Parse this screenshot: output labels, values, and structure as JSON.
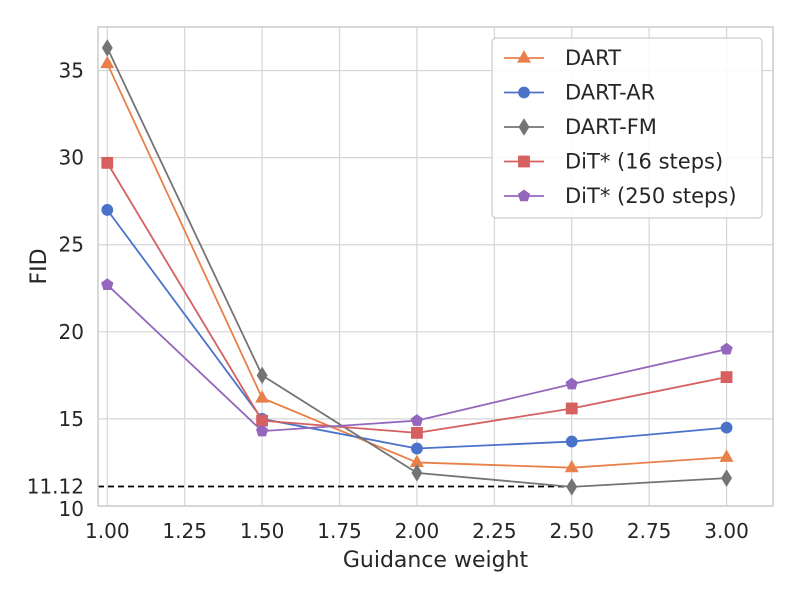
{
  "chart_data": {
    "type": "line",
    "title": "",
    "xlabel": "Guidance weight",
    "ylabel": "FID",
    "xlim": [
      0.97,
      3.15
    ],
    "ylim": [
      10,
      37.5
    ],
    "x_ticks": [
      1.0,
      1.25,
      1.5,
      1.75,
      2.0,
      2.25,
      2.5,
      2.75,
      3.0
    ],
    "x_tick_labels": [
      "1.00",
      "1.25",
      "1.50",
      "1.75",
      "2.00",
      "2.25",
      "2.50",
      "2.75",
      "3.00"
    ],
    "y_ticks": [
      10,
      11.12,
      15,
      20,
      25,
      30,
      35
    ],
    "y_tick_labels": [
      "10",
      "11.12",
      "15",
      "20",
      "25",
      "30",
      "35"
    ],
    "grid": true,
    "legend_position": "top-right",
    "reference_line": {
      "y": 11.12,
      "x_range": [
        0.97,
        2.5
      ],
      "style": "dashed",
      "color": "#000000"
    },
    "series": [
      {
        "name": "DART",
        "color": "#e8804a",
        "marker": "triangle",
        "x": [
          1.0,
          1.5,
          2.0,
          2.5,
          3.0
        ],
        "y": [
          35.4,
          16.2,
          12.5,
          12.2,
          12.8
        ]
      },
      {
        "name": "DART-AR",
        "color": "#4a72c9",
        "marker": "circle",
        "x": [
          1.0,
          1.5,
          2.0,
          2.5,
          3.0
        ],
        "y": [
          27.0,
          15.0,
          13.3,
          13.7,
          14.5
        ]
      },
      {
        "name": "DART-FM",
        "color": "#747474",
        "marker": "diamond",
        "x": [
          1.0,
          1.5,
          2.0,
          2.5,
          3.0
        ],
        "y": [
          36.3,
          17.5,
          11.9,
          11.1,
          11.6
        ]
      },
      {
        "name": "DiT* (16 steps)",
        "color": "#d65f5f",
        "marker": "square",
        "x": [
          1.0,
          1.5,
          2.0,
          2.5,
          3.0
        ],
        "y": [
          29.7,
          14.9,
          14.2,
          15.6,
          17.4
        ]
      },
      {
        "name": "DiT* (250 steps)",
        "color": "#9467bd",
        "marker": "pentagon",
        "x": [
          1.0,
          1.5,
          2.0,
          2.5,
          3.0
        ],
        "y": [
          22.7,
          14.3,
          14.9,
          17.0,
          19.0
        ]
      }
    ]
  }
}
